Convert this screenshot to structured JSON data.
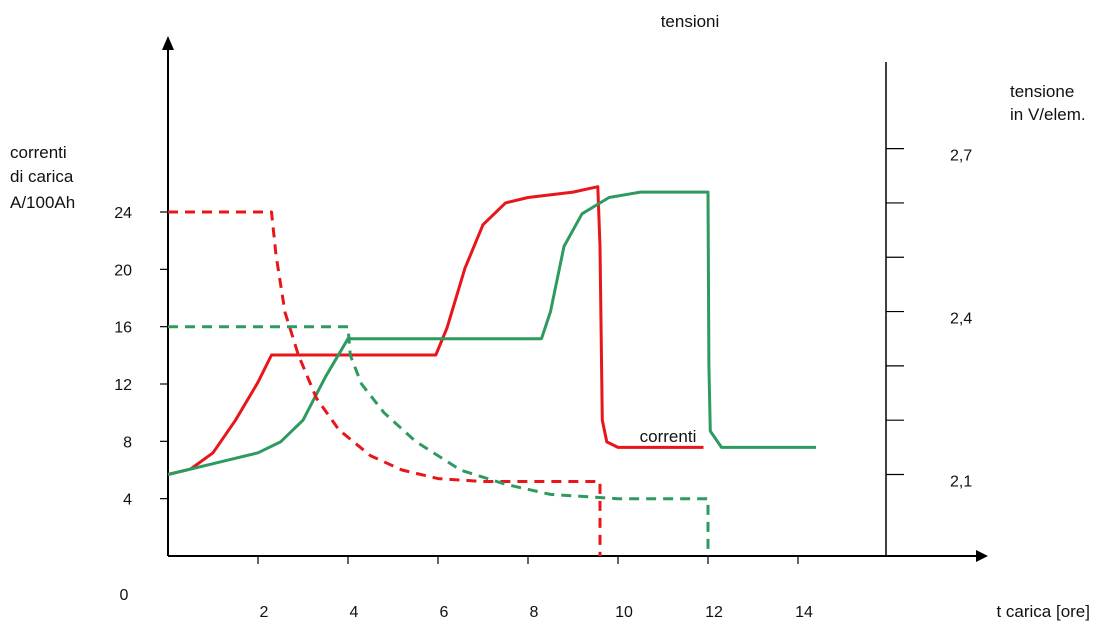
{
  "labels": {
    "top": "tensioni",
    "left_axis": [
      "correnti",
      "di carica",
      "A/100Ah"
    ],
    "right_axis": [
      "tensione",
      "in V/elem."
    ],
    "x_axis": "t  carica [ore]",
    "middle": "correnti",
    "origin": "0"
  },
  "colors": {
    "red": "#e8161a",
    "green": "#2e9a60",
    "axis": "#000000"
  },
  "chart_data": {
    "type": "line",
    "x_ticks": [
      "2",
      "4",
      "6",
      "8",
      "10",
      "12",
      "14"
    ],
    "x_tick_values": [
      2,
      4,
      6,
      8,
      10,
      12,
      14
    ],
    "left_ticks": [
      "4",
      "8",
      "12",
      "16",
      "20",
      "24"
    ],
    "left_tick_values": [
      4,
      8,
      12,
      16,
      20,
      24
    ],
    "right_ticks": [
      "2,7",
      "2,4",
      "2,1"
    ],
    "right_tick_values": [
      2.7,
      2.4,
      2.1
    ],
    "right_minor_values": [
      2.6,
      2.5,
      2.3,
      2.2
    ],
    "xlim": [
      0,
      18
    ],
    "ylim_left": [
      0,
      36
    ],
    "ylim_right": [
      1.95,
      2.9
    ],
    "series": [
      {
        "axis": "right",
        "style": "solid",
        "color": "red",
        "points": [
          [
            0,
            2.1
          ],
          [
            0.5,
            2.11
          ],
          [
            1,
            2.14
          ],
          [
            1.5,
            2.2
          ],
          [
            2,
            2.27
          ],
          [
            2.3,
            2.32
          ],
          [
            3,
            2.32
          ],
          [
            4,
            2.32
          ],
          [
            5,
            2.32
          ],
          [
            5.95,
            2.32
          ],
          [
            6.2,
            2.37
          ],
          [
            6.6,
            2.48
          ],
          [
            7,
            2.56
          ],
          [
            7.5,
            2.6
          ],
          [
            8,
            2.61
          ],
          [
            9,
            2.62
          ],
          [
            9.55,
            2.63
          ],
          [
            9.6,
            2.52
          ],
          [
            9.65,
            2.2
          ],
          [
            9.75,
            2.16
          ],
          [
            10,
            2.15
          ],
          [
            11,
            2.15
          ],
          [
            11.9,
            2.15
          ]
        ]
      },
      {
        "axis": "right",
        "style": "solid",
        "color": "green",
        "points": [
          [
            0,
            2.1
          ],
          [
            1,
            2.12
          ],
          [
            2,
            2.14
          ],
          [
            2.5,
            2.16
          ],
          [
            3,
            2.2
          ],
          [
            3.5,
            2.28
          ],
          [
            4,
            2.35
          ],
          [
            5,
            2.35
          ],
          [
            6,
            2.35
          ],
          [
            7,
            2.35
          ],
          [
            8.3,
            2.35
          ],
          [
            8.5,
            2.4
          ],
          [
            8.8,
            2.52
          ],
          [
            9.2,
            2.58
          ],
          [
            9.8,
            2.61
          ],
          [
            10.5,
            2.62
          ],
          [
            12,
            2.62
          ],
          [
            12.02,
            2.3
          ],
          [
            12.05,
            2.18
          ],
          [
            12.3,
            2.15
          ],
          [
            13,
            2.15
          ],
          [
            14.4,
            2.15
          ]
        ]
      },
      {
        "axis": "left",
        "style": "dashed",
        "color": "red",
        "points": [
          [
            0,
            24
          ],
          [
            2.3,
            24
          ],
          [
            2.4,
            21
          ],
          [
            2.6,
            17
          ],
          [
            2.9,
            14
          ],
          [
            3.3,
            11
          ],
          [
            3.8,
            8.8
          ],
          [
            4.5,
            7
          ],
          [
            5.2,
            6
          ],
          [
            6,
            5.4
          ],
          [
            7,
            5.2
          ],
          [
            9.6,
            5.2
          ],
          [
            9.6,
            0
          ]
        ]
      },
      {
        "axis": "left",
        "style": "dashed",
        "color": "green",
        "points": [
          [
            0,
            16
          ],
          [
            4,
            16
          ],
          [
            4.05,
            14
          ],
          [
            4.3,
            12
          ],
          [
            4.8,
            10
          ],
          [
            5.5,
            8
          ],
          [
            6.5,
            6
          ],
          [
            7.5,
            5
          ],
          [
            8.5,
            4.3
          ],
          [
            10,
            4
          ],
          [
            12,
            4
          ],
          [
            12,
            0
          ]
        ]
      }
    ]
  }
}
